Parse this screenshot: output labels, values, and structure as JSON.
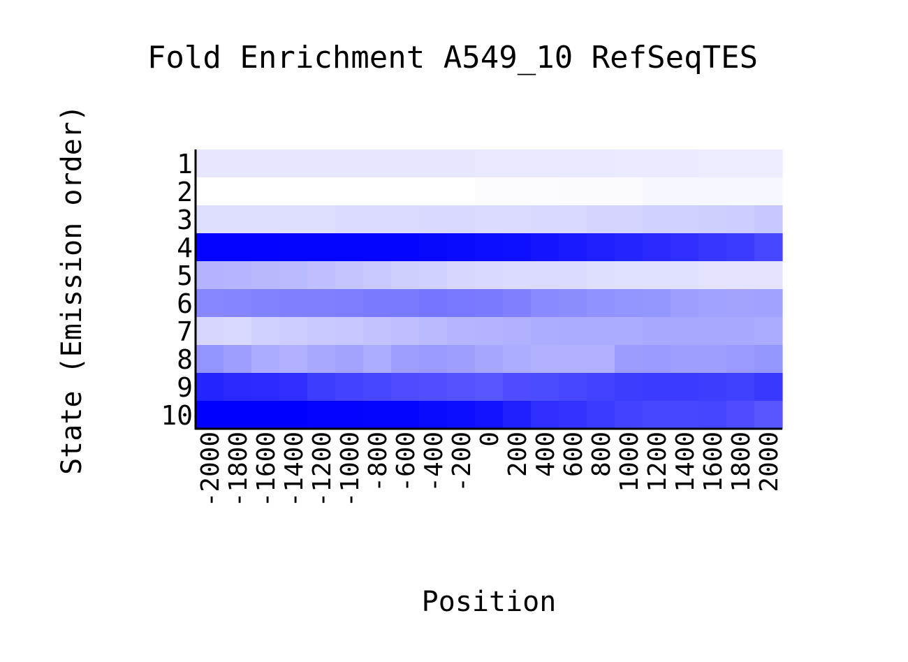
{
  "chart_data": {
    "type": "heatmap",
    "title": "Fold Enrichment A549_10 RefSeqTES",
    "xlabel": "Position",
    "ylabel": "State (Emission order)",
    "x_categories": [
      "-2000",
      "-1800",
      "-1600",
      "-1400",
      "-1200",
      "-1000",
      "-800",
      "-600",
      "-400",
      "-200",
      "0",
      "200",
      "400",
      "600",
      "800",
      "1000",
      "1200",
      "1400",
      "1600",
      "1800",
      "2000"
    ],
    "y_categories": [
      "1",
      "2",
      "3",
      "4",
      "5",
      "6",
      "7",
      "8",
      "9",
      "10"
    ],
    "color_scale": {
      "low": "#ffffff",
      "high": "#0000ff"
    },
    "values": [
      [
        0.1,
        0.1,
        0.1,
        0.1,
        0.1,
        0.1,
        0.1,
        0.1,
        0.1,
        0.1,
        0.09,
        0.09,
        0.09,
        0.09,
        0.09,
        0.08,
        0.08,
        0.08,
        0.07,
        0.07,
        0.07
      ],
      [
        0.0,
        0.0,
        0.0,
        0.0,
        0.0,
        0.0,
        0.0,
        0.0,
        0.0,
        0.0,
        0.01,
        0.01,
        0.01,
        0.02,
        0.02,
        0.02,
        0.03,
        0.03,
        0.03,
        0.03,
        0.03
      ],
      [
        0.13,
        0.13,
        0.13,
        0.13,
        0.13,
        0.14,
        0.14,
        0.14,
        0.15,
        0.15,
        0.14,
        0.14,
        0.15,
        0.15,
        0.17,
        0.17,
        0.18,
        0.18,
        0.19,
        0.2,
        0.22
      ],
      [
        0.99,
        0.99,
        0.99,
        0.98,
        0.98,
        0.98,
        0.98,
        0.98,
        0.97,
        0.96,
        0.95,
        0.94,
        0.92,
        0.9,
        0.88,
        0.86,
        0.84,
        0.82,
        0.79,
        0.77,
        0.72
      ],
      [
        0.3,
        0.29,
        0.28,
        0.27,
        0.25,
        0.23,
        0.21,
        0.19,
        0.18,
        0.16,
        0.15,
        0.14,
        0.14,
        0.14,
        0.13,
        0.12,
        0.12,
        0.12,
        0.11,
        0.11,
        0.11
      ],
      [
        0.47,
        0.48,
        0.49,
        0.5,
        0.5,
        0.51,
        0.52,
        0.52,
        0.54,
        0.53,
        0.52,
        0.5,
        0.46,
        0.45,
        0.43,
        0.42,
        0.41,
        0.38,
        0.37,
        0.36,
        0.37
      ],
      [
        0.16,
        0.15,
        0.18,
        0.2,
        0.21,
        0.22,
        0.24,
        0.25,
        0.27,
        0.29,
        0.3,
        0.31,
        0.32,
        0.33,
        0.33,
        0.33,
        0.34,
        0.34,
        0.34,
        0.34,
        0.33
      ],
      [
        0.42,
        0.38,
        0.33,
        0.31,
        0.34,
        0.36,
        0.32,
        0.38,
        0.4,
        0.38,
        0.35,
        0.32,
        0.31,
        0.31,
        0.31,
        0.39,
        0.4,
        0.38,
        0.38,
        0.4,
        0.41
      ],
      [
        0.86,
        0.84,
        0.83,
        0.82,
        0.76,
        0.74,
        0.72,
        0.7,
        0.69,
        0.67,
        0.66,
        0.7,
        0.71,
        0.72,
        0.74,
        0.76,
        0.77,
        0.77,
        0.76,
        0.75,
        0.78
      ],
      [
        1.0,
        1.0,
        1.0,
        1.0,
        0.99,
        0.99,
        0.98,
        0.98,
        0.96,
        0.95,
        0.93,
        0.88,
        0.82,
        0.8,
        0.77,
        0.74,
        0.72,
        0.72,
        0.73,
        0.7,
        0.66
      ]
    ],
    "grid": false,
    "legend": "none"
  }
}
